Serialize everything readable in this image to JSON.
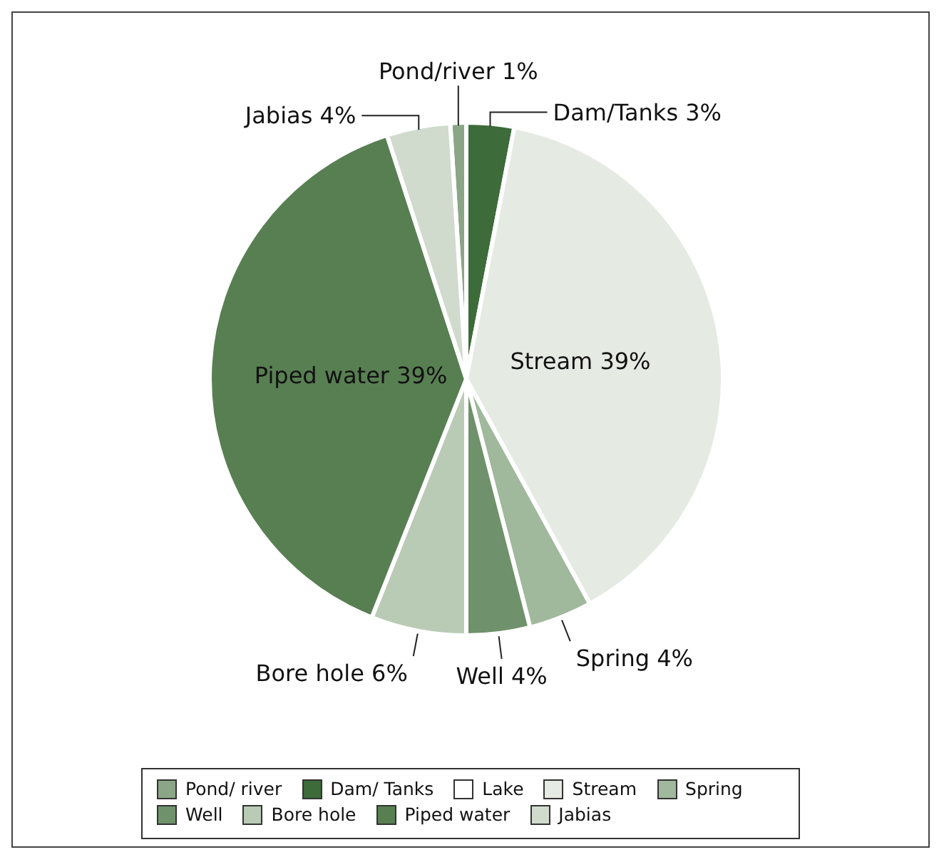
{
  "chart_data": {
    "type": "pie",
    "categories": [
      "Pond/ river",
      "Dam/ Tanks",
      "Lake",
      "Stream",
      "Spring",
      "Well",
      "Bore hole",
      "Piped water",
      "Jabias"
    ],
    "values": [
      1,
      3,
      0,
      39,
      4,
      4,
      6,
      39,
      4
    ],
    "colors": [
      "#8aa686",
      "#3d6b3a",
      "#ffffff",
      "#e5eae3",
      "#a0b89c",
      "#6f916b",
      "#b9cbb5",
      "#587f52",
      "#d0dbcd"
    ],
    "value_labels": [
      "Pond/river 1%",
      "Dam/Tanks 3%",
      null,
      "Stream 39%",
      "Spring 4%",
      "Well 4%",
      "Bore hole 6%",
      "Piped water 39%",
      "Jabias 4%"
    ],
    "legend": "bottom"
  }
}
